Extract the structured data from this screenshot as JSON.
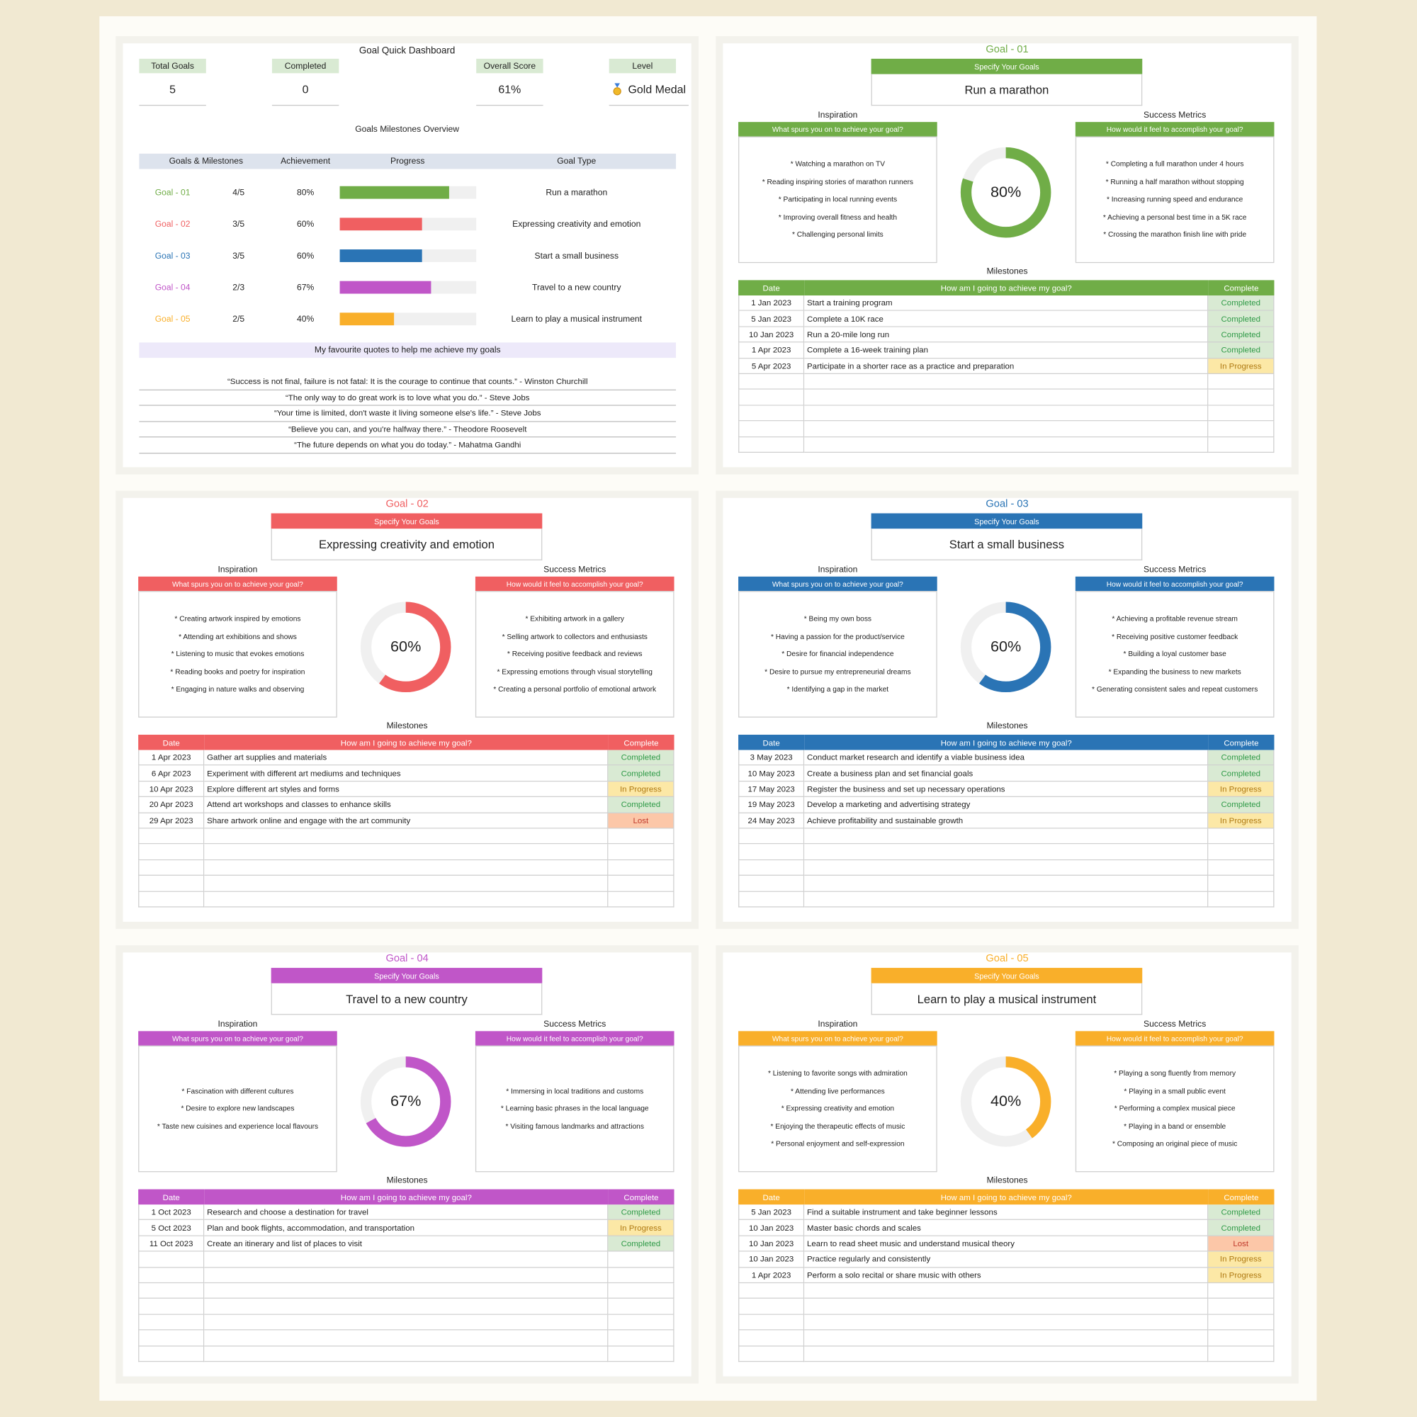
{
  "statuses": {
    "Completed": {
      "fill": "#d9ead3",
      "ink": "#2f9a47"
    },
    "In Progress": {
      "fill": "#fce8a6",
      "ink": "#b07a12"
    },
    "Lost": {
      "fill": "#fcc7a8",
      "ink": "#c0392b"
    }
  },
  "dashboard": {
    "title": "Goal Quick Dashboard",
    "stats": [
      {
        "label": "Total Goals",
        "value": "5"
      },
      {
        "label": "Completed",
        "value": "0"
      },
      {
        "label": "Overall Score",
        "value": "61%"
      },
      {
        "label": "Level",
        "value": "Gold Medal"
      }
    ],
    "overview_title": "Goals Milestones Overview",
    "columns": [
      "Goals & Milestones",
      "Achievement",
      "Progress",
      "Goal Type"
    ],
    "rows": [
      {
        "goal": "Goal - 01",
        "milestones": "4/5",
        "achievement": {
          "value": 80,
          "label": "80%"
        },
        "type": "Run a marathon",
        "color": "#70ad47"
      },
      {
        "goal": "Goal - 02",
        "milestones": "3/5",
        "achievement": {
          "value": 60,
          "label": "60%"
        },
        "type": "Expressing creativity and emotion",
        "color": "#f05f61"
      },
      {
        "goal": "Goal - 03",
        "milestones": "3/5",
        "achievement": {
          "value": 60,
          "label": "60%"
        },
        "type": "Start a small business",
        "color": "#2a74b5"
      },
      {
        "goal": "Goal - 04",
        "milestones": "2/3",
        "achievement": {
          "value": 67,
          "label": "67%"
        },
        "type": "Travel to a new country",
        "color": "#c056c8"
      },
      {
        "goal": "Goal - 05",
        "milestones": "2/5",
        "achievement": {
          "value": 40,
          "label": "40%"
        },
        "type": "Learn to play a musical instrument",
        "color": "#f9af2a"
      }
    ],
    "quotes_title": "My favourite quotes to help me achieve my goals",
    "quotes": [
      "“Success is not final, failure is not fatal: It is the courage to continue that counts.” - Winston Churchill",
      "“The only way to do great work is to love what you do.” - Steve Jobs",
      "“Your time is limited, don't waste it living someone else's life.” - Steve Jobs",
      "“Believe you can, and you're halfway there.” - Theodore Roosevelt",
      "“The future depends on what you do today.” - Mahatma Gandhi"
    ]
  },
  "goals": [
    {
      "title": "Goal - 01",
      "color": "#70ad47",
      "specify": "Specify Your Goals",
      "goal": "Run a marathon",
      "inspiration_title": "Inspiration",
      "inspiration_prompt": "What spurs you on to achieve your goal?",
      "inspiration": [
        "* Watching a marathon on TV",
        "* Reading inspiring stories of marathon runners",
        "* Participating in local running events",
        "* Improving overall fitness and health",
        "* Challenging personal limits"
      ],
      "metrics_title": "Success Metrics",
      "metrics_prompt": "How would it feel to accomplish your goal?",
      "metrics": [
        "* Completing a full marathon under 4 hours",
        "* Running a half marathon without stopping",
        "* Increasing running speed and endurance",
        "* Achieving a personal best time in a 5K race",
        "* Crossing the marathon finish line with pride"
      ],
      "achievement": {
        "value": 80,
        "label": "80%"
      },
      "milestones_title": "Milestones",
      "columns": [
        "Date",
        "How am I going to achieve my goal?",
        "Complete"
      ],
      "rows": [
        [
          "1 Jan 2023",
          "Start a training program",
          "Completed"
        ],
        [
          "5 Jan 2023",
          "Complete a 10K race",
          "Completed"
        ],
        [
          "10 Jan 2023",
          "Run a 20-mile long run",
          "Completed"
        ],
        [
          "1 Apr 2023",
          "Complete a 16-week training plan",
          "Completed"
        ],
        [
          "5 Apr 2023",
          "Participate in a shorter race as a practice and preparation",
          "In Progress"
        ]
      ]
    },
    {
      "title": "Goal - 02",
      "color": "#f05f61",
      "specify": "Specify Your Goals",
      "goal": "Expressing creativity and emotion",
      "inspiration_title": "Inspiration",
      "inspiration_prompt": "What spurs you on to achieve your goal?",
      "inspiration": [
        "* Creating artwork inspired by emotions",
        "* Attending art exhibitions and shows",
        "* Listening to music that evokes emotions",
        "* Reading books and poetry for inspiration",
        "* Engaging in nature walks and observing"
      ],
      "metrics_title": "Success Metrics",
      "metrics_prompt": "How would it feel to accomplish your goal?",
      "metrics": [
        "* Exhibiting artwork in a gallery",
        "* Selling artwork to collectors and enthusiasts",
        "* Receiving positive feedback and reviews",
        "* Expressing emotions through visual storytelling",
        "* Creating a personal portfolio of emotional artwork"
      ],
      "achievement": {
        "value": 60,
        "label": "60%"
      },
      "milestones_title": "Milestones",
      "columns": [
        "Date",
        "How am I going to achieve my goal?",
        "Complete"
      ],
      "rows": [
        [
          "1 Apr 2023",
          "Gather art supplies and materials",
          "Completed"
        ],
        [
          "6 Apr 2023",
          "Experiment with different art mediums and techniques",
          "Completed"
        ],
        [
          "10 Apr 2023",
          "Explore different art styles and forms",
          "In Progress"
        ],
        [
          "20 Apr 2023",
          "Attend art workshops and classes to enhance skills",
          "Completed"
        ],
        [
          "29 Apr 2023",
          "Share artwork online and engage with the art community",
          "Lost"
        ]
      ]
    },
    {
      "title": "Goal - 03",
      "color": "#2a74b5",
      "specify": "Specify Your Goals",
      "goal": "Start a small business",
      "inspiration_title": "Inspiration",
      "inspiration_prompt": "What spurs you on to achieve your goal?",
      "inspiration": [
        "* Being my own boss",
        "* Having a passion for the product/service",
        "* Desire for financial independence",
        "* Desire to pursue my entrepreneurial dreams",
        "* Identifying a gap in the market"
      ],
      "metrics_title": "Success Metrics",
      "metrics_prompt": "How would it feel to accomplish your goal?",
      "metrics": [
        "* Achieving a profitable revenue stream",
        "* Receiving positive customer feedback",
        "* Building a loyal customer base",
        "* Expanding the business to new markets",
        "* Generating consistent sales and repeat customers"
      ],
      "achievement": {
        "value": 60,
        "label": "60%"
      },
      "milestones_title": "Milestones",
      "columns": [
        "Date",
        "How am I going to achieve my goal?",
        "Complete"
      ],
      "rows": [
        [
          "3 May 2023",
          "Conduct market research and identify a viable business idea",
          "Completed"
        ],
        [
          "10 May 2023",
          "Create a business plan and set financial goals",
          "Completed"
        ],
        [
          "17 May 2023",
          "Register the business and set up necessary operations",
          "In Progress"
        ],
        [
          "19 May 2023",
          "Develop a marketing and advertising strategy",
          "Completed"
        ],
        [
          "24 May 2023",
          "Achieve profitability and sustainable growth",
          "In Progress"
        ]
      ]
    },
    {
      "title": "Goal - 04",
      "color": "#c056c8",
      "specify": "Specify Your Goals",
      "goal": "Travel to a new country",
      "inspiration_title": "Inspiration",
      "inspiration_prompt": "What spurs you on to achieve your goal?",
      "inspiration": [
        "* Fascination with different cultures",
        "* Desire to explore new landscapes",
        "* Taste new cuisines and experience local flavours"
      ],
      "metrics_title": "Success Metrics",
      "metrics_prompt": "How would it feel to accomplish your goal?",
      "metrics": [
        "* Immersing in local traditions and customs",
        "* Learning basic phrases in the local language",
        "* Visiting famous landmarks and attractions"
      ],
      "achievement": {
        "value": 67,
        "label": "67%"
      },
      "milestones_title": "Milestones",
      "columns": [
        "Date",
        "How am I going to achieve my goal?",
        "Complete"
      ],
      "rows": [
        [
          "1 Oct 2023",
          "Research and choose a destination for travel",
          "Completed"
        ],
        [
          "5 Oct 2023",
          "Plan and book flights, accommodation, and transportation",
          "In Progress"
        ],
        [
          "11 Oct 2023",
          "Create an itinerary and list of places to visit",
          "Completed"
        ]
      ]
    },
    {
      "title": "Goal - 05",
      "color": "#f9af2a",
      "specify": "Specify Your Goals",
      "goal": "Learn to play a musical instrument",
      "inspiration_title": "Inspiration",
      "inspiration_prompt": "What spurs you on to achieve your goal?",
      "inspiration": [
        "* Listening to favorite songs with admiration",
        "* Attending live performances",
        "* Expressing creativity and emotion",
        "* Enjoying the therapeutic effects of music",
        "* Personal enjoyment and self-expression"
      ],
      "metrics_title": "Success Metrics",
      "metrics_prompt": "How would it feel to accomplish your goal?",
      "metrics": [
        "* Playing a song fluently from memory",
        "* Playing in a small public event",
        "* Performing a complex musical piece",
        "* Playing in a band or ensemble",
        "* Composing an original piece of music"
      ],
      "achievement": {
        "value": 40,
        "label": "40%"
      },
      "milestones_title": "Milestones",
      "columns": [
        "Date",
        "How am I going to achieve my goal?",
        "Complete"
      ],
      "rows": [
        [
          "5 Jan 2023",
          "Find a suitable instrument and take beginner lessons",
          "Completed"
        ],
        [
          "10 Jan 2023",
          "Master basic chords and scales",
          "Completed"
        ],
        [
          "10 Jan 2023",
          "Learn to read sheet music and understand musical theory",
          "Lost"
        ],
        [
          "10 Jan 2023",
          "Practice regularly and consistently",
          "In Progress"
        ],
        [
          "1 Apr 2023",
          "Perform a solo recital or share music with others",
          "In Progress"
        ]
      ]
    }
  ]
}
